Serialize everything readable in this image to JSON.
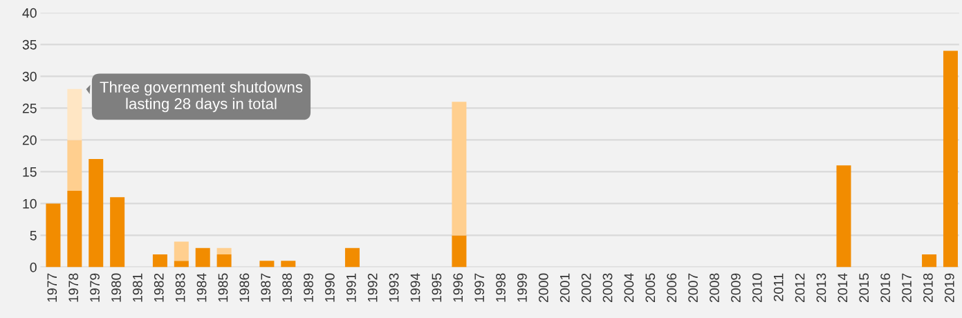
{
  "chart_data": {
    "type": "bar",
    "stacked": true,
    "categories": [
      "1977",
      "1978",
      "1979",
      "1980",
      "1981",
      "1982",
      "1983",
      "1984",
      "1985",
      "1986",
      "1987",
      "1988",
      "1989",
      "1990",
      "1991",
      "1992",
      "1993",
      "1994",
      "1995",
      "1996",
      "1997",
      "1998",
      "1999",
      "2000",
      "2001",
      "2002",
      "2003",
      "2004",
      "2005",
      "2006",
      "2007",
      "2008",
      "2009",
      "2010",
      "2011",
      "2012",
      "2013",
      "2014",
      "2015",
      "2016",
      "2017",
      "2018",
      "2019"
    ],
    "series": [
      {
        "color": "#f28c00",
        "values": [
          10,
          12,
          17,
          11,
          0,
          2,
          1,
          3,
          2,
          0,
          1,
          1,
          0,
          0,
          3,
          0,
          0,
          0,
          0,
          5,
          0,
          0,
          0,
          0,
          0,
          0,
          0,
          0,
          0,
          0,
          0,
          0,
          0,
          0,
          0,
          0,
          0,
          16,
          0,
          0,
          0,
          2,
          34
        ]
      },
      {
        "color": "#ffcf8f",
        "values": [
          0,
          8,
          0,
          0,
          0,
          0,
          3,
          0,
          1,
          0,
          0,
          0,
          0,
          0,
          0,
          0,
          0,
          0,
          0,
          21,
          0,
          0,
          0,
          0,
          0,
          0,
          0,
          0,
          0,
          0,
          0,
          0,
          0,
          0,
          0,
          0,
          0,
          0,
          0,
          0,
          0,
          0,
          0
        ]
      },
      {
        "color": "#ffe6c4",
        "values": [
          0,
          8,
          0,
          0,
          0,
          0,
          0,
          0,
          0,
          0,
          0,
          0,
          0,
          0,
          0,
          0,
          0,
          0,
          0,
          0,
          0,
          0,
          0,
          0,
          0,
          0,
          0,
          0,
          0,
          0,
          0,
          0,
          0,
          0,
          0,
          0,
          0,
          0,
          0,
          0,
          0,
          0,
          0
        ]
      }
    ],
    "ylim": [
      0,
      40
    ],
    "yticks": [
      0,
      5,
      10,
      15,
      20,
      25,
      30,
      35,
      40
    ],
    "grid": "y",
    "annotations": [
      {
        "text": "Three government shutdowns\nlasting 28 days in total",
        "x": "1978",
        "y": 28
      }
    ]
  }
}
